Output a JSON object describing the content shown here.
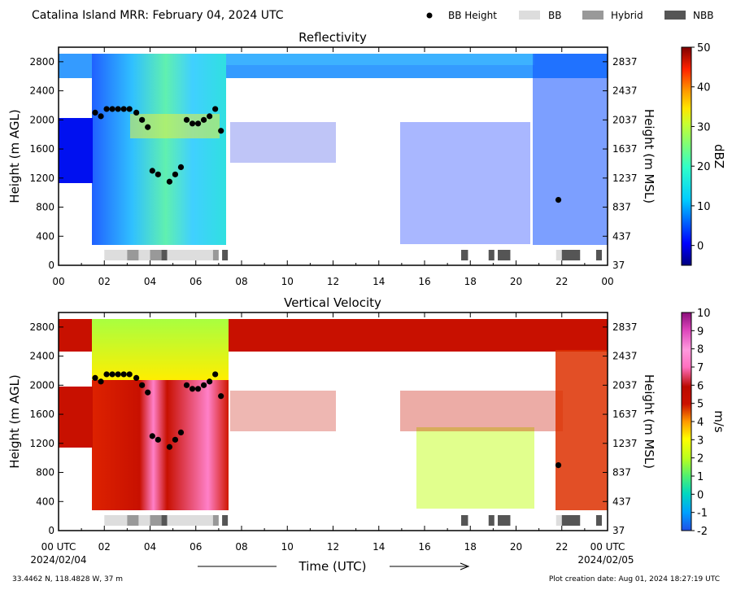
{
  "header": {
    "title": "Catalina Island MRR:  February 04, 2024 UTC"
  },
  "legend": [
    {
      "label": "BB Height",
      "kind": "dot",
      "color": "#000000"
    },
    {
      "label": "BB",
      "kind": "box",
      "color": "#dddddd"
    },
    {
      "label": "Hybrid",
      "kind": "box",
      "color": "#999999"
    },
    {
      "label": "NBB",
      "kind": "box",
      "color": "#555555"
    }
  ],
  "axes": {
    "x_ticks": [
      "00",
      "02",
      "04",
      "06",
      "08",
      "10",
      "12",
      "14",
      "16",
      "18",
      "20",
      "22",
      "00"
    ],
    "x_ticks_bottom": [
      "00 UTC",
      "02",
      "04",
      "06",
      "08",
      "10",
      "12",
      "14",
      "16",
      "18",
      "20",
      "22",
      "00 UTC"
    ],
    "x_date_start": "2024/02/04",
    "x_date_end": "2024/02/05",
    "x_label": "Time (UTC)",
    "y_left_ticks": [
      "0",
      "400",
      "800",
      "1200",
      "1600",
      "2000",
      "2400",
      "2800"
    ],
    "y_right_ticks": [
      "37",
      "437",
      "837",
      "1237",
      "1637",
      "2037",
      "2437",
      "2837"
    ],
    "y_left_label": "Height (m AGL)",
    "y_right_label": "Height (m MSL)"
  },
  "footer": {
    "location": "33.4462 N, 118.4828 W, 37 m",
    "created": "Plot creation date: Aug 01, 2024 18:27:19 UTC"
  },
  "chart_data": [
    {
      "type": "heatmap",
      "title": "Reflectivity",
      "xlabel": "",
      "ylabel": "Height (m AGL)",
      "ylabel_right": "Height (m MSL)",
      "xlim": [
        0,
        24
      ],
      "ylim": [
        0,
        3000
      ],
      "colorbar": {
        "label": "dBZ",
        "range": [
          -5,
          50
        ],
        "ticks": [
          "0",
          "10",
          "20",
          "30",
          "40",
          "50"
        ]
      },
      "bb_height": {
        "x": [
          1.6,
          1.85,
          2.1,
          2.35,
          2.6,
          2.85,
          3.1,
          3.4,
          3.65,
          3.9,
          4.1,
          4.35,
          4.85,
          5.1,
          5.35,
          5.6,
          5.85,
          6.1,
          6.35,
          6.6,
          6.85,
          7.1,
          21.85
        ],
        "y": [
          2100,
          2050,
          2150,
          2150,
          2150,
          2150,
          2150,
          2100,
          2000,
          1900,
          1300,
          1250,
          1150,
          1250,
          1350,
          2000,
          1950,
          1950,
          2000,
          2050,
          2150,
          1850,
          900
        ]
      },
      "bb_type_segments": [
        {
          "start": 2.0,
          "end": 3.0,
          "type": "BB"
        },
        {
          "start": 3.0,
          "end": 3.5,
          "type": "Hybrid"
        },
        {
          "start": 3.5,
          "end": 4.0,
          "type": "BB"
        },
        {
          "start": 4.0,
          "end": 4.5,
          "type": "Hybrid"
        },
        {
          "start": 4.5,
          "end": 4.75,
          "type": "NBB"
        },
        {
          "start": 4.75,
          "end": 6.75,
          "type": "BB"
        },
        {
          "start": 6.75,
          "end": 7.0,
          "type": "Hybrid"
        },
        {
          "start": 7.15,
          "end": 7.4,
          "type": "NBB"
        },
        {
          "start": 17.6,
          "end": 17.9,
          "type": "NBB"
        },
        {
          "start": 18.8,
          "end": 19.05,
          "type": "NBB"
        },
        {
          "start": 19.2,
          "end": 19.75,
          "type": "NBB"
        },
        {
          "start": 21.75,
          "end": 22.0,
          "type": "BB"
        },
        {
          "start": 22.0,
          "end": 22.8,
          "type": "NBB"
        },
        {
          "start": 23.5,
          "end": 23.75,
          "type": "NBB"
        }
      ]
    },
    {
      "type": "heatmap",
      "title": "Vertical Velocity",
      "xlabel": "Time (UTC)",
      "ylabel": "Height (m AGL)",
      "ylabel_right": "Height (m MSL)",
      "xlim": [
        0,
        24
      ],
      "ylim": [
        0,
        3000
      ],
      "colorbar": {
        "label": "m/s",
        "range": [
          -2,
          10
        ],
        "ticks": [
          "-2",
          "-1",
          "0",
          "1",
          "2",
          "3",
          "4",
          "5",
          "6",
          "7",
          "8",
          "9",
          "10"
        ]
      },
      "bb_height": {
        "x": [
          1.6,
          1.85,
          2.1,
          2.35,
          2.6,
          2.85,
          3.1,
          3.4,
          3.65,
          3.9,
          4.1,
          4.35,
          4.85,
          5.1,
          5.35,
          5.6,
          5.85,
          6.1,
          6.35,
          6.6,
          6.85,
          7.1,
          21.85
        ],
        "y": [
          2100,
          2050,
          2150,
          2150,
          2150,
          2150,
          2150,
          2100,
          2000,
          1900,
          1300,
          1250,
          1150,
          1250,
          1350,
          2000,
          1950,
          1950,
          2000,
          2050,
          2150,
          1850,
          900
        ]
      },
      "bb_type_segments": [
        {
          "start": 2.0,
          "end": 3.0,
          "type": "BB"
        },
        {
          "start": 3.0,
          "end": 3.5,
          "type": "Hybrid"
        },
        {
          "start": 3.5,
          "end": 4.0,
          "type": "BB"
        },
        {
          "start": 4.0,
          "end": 4.5,
          "type": "Hybrid"
        },
        {
          "start": 4.5,
          "end": 4.75,
          "type": "NBB"
        },
        {
          "start": 4.75,
          "end": 6.75,
          "type": "BB"
        },
        {
          "start": 6.75,
          "end": 7.0,
          "type": "Hybrid"
        },
        {
          "start": 7.15,
          "end": 7.4,
          "type": "NBB"
        },
        {
          "start": 17.6,
          "end": 17.9,
          "type": "NBB"
        },
        {
          "start": 18.8,
          "end": 19.05,
          "type": "NBB"
        },
        {
          "start": 19.2,
          "end": 19.75,
          "type": "NBB"
        },
        {
          "start": 21.75,
          "end": 22.0,
          "type": "BB"
        },
        {
          "start": 22.0,
          "end": 22.8,
          "type": "NBB"
        },
        {
          "start": 23.5,
          "end": 23.75,
          "type": "NBB"
        }
      ]
    }
  ]
}
